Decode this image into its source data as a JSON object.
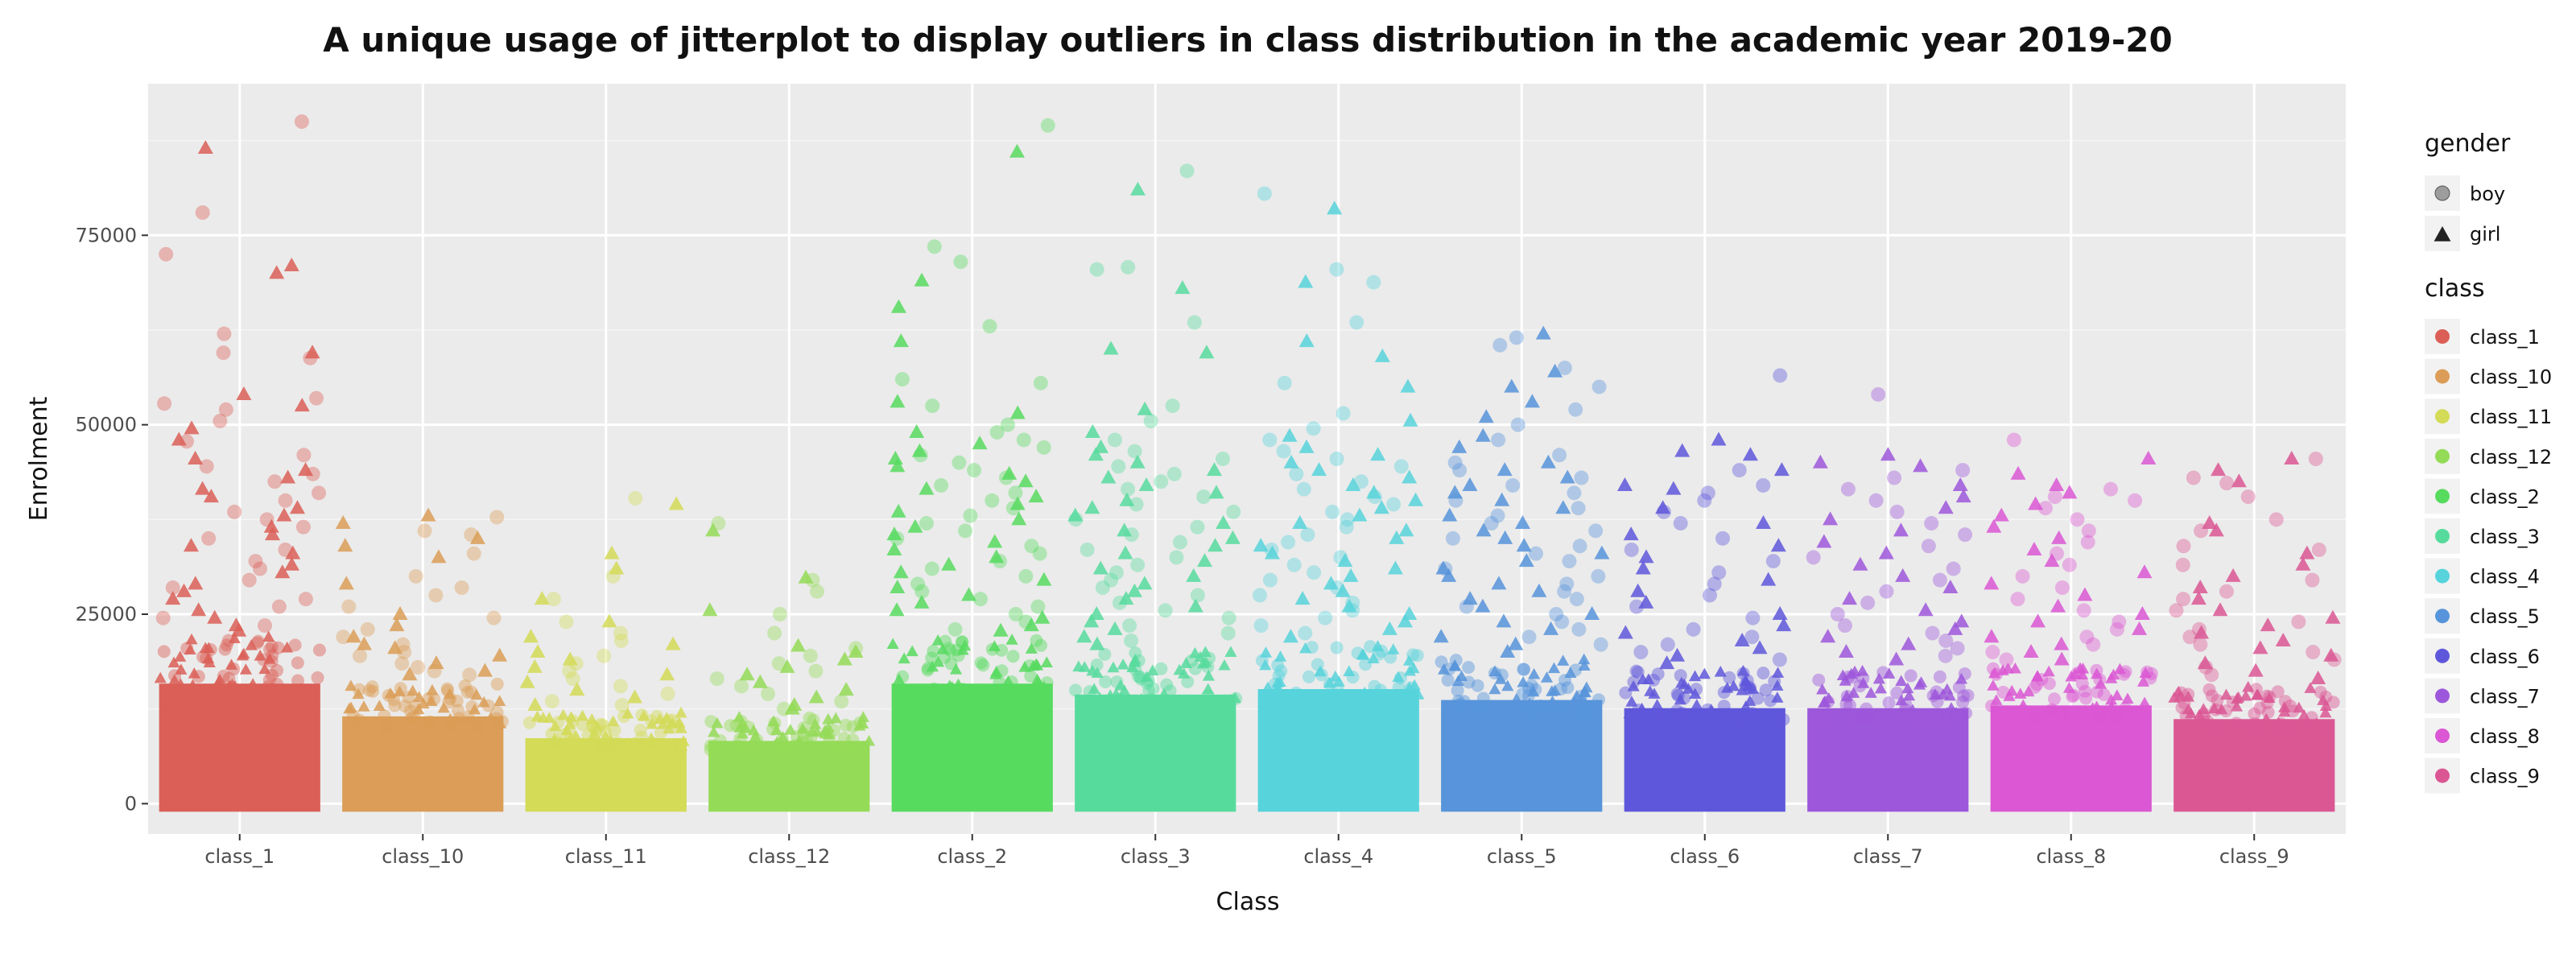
{
  "chart_data": {
    "type": "scatter",
    "subtype": "jitter",
    "title": "A unique usage of jitterplot to display outliers in class distribution in the academic year 2019-20",
    "xlabel": "Class",
    "ylabel": "Enrolment",
    "ylim": [
      -4000,
      95000
    ],
    "yticks": [
      0,
      25000,
      50000,
      75000
    ],
    "ytick_labels": [
      "0",
      "25000",
      "50000",
      "75000"
    ],
    "grid": true,
    "background": "#ebebeb",
    "legend_position": "right",
    "categories": [
      "class_1",
      "class_10",
      "class_11",
      "class_12",
      "class_2",
      "class_3",
      "class_4",
      "class_5",
      "class_6",
      "class_7",
      "class_8",
      "class_9"
    ],
    "class_legend_title": "class",
    "gender_legend_title": "gender",
    "gender_legend": [
      {
        "label": "boy",
        "shape": "circle"
      },
      {
        "label": "girl",
        "shape": "triangle"
      }
    ],
    "series": [
      {
        "name": "class_1",
        "color": "#DB5F57",
        "dense_max": 22000,
        "outliers": {
          "boy": [
            90000,
            78000,
            72500,
            62000,
            59500,
            58800,
            53500,
            52800,
            52000,
            50500,
            47800,
            46000,
            44500,
            43500,
            42500,
            41000,
            40000,
            38500,
            37500,
            36500,
            35000,
            33500,
            32000,
            31000,
            29500,
            28500,
            27000,
            26000,
            24500,
            23500
          ],
          "girl": [
            86500,
            71000,
            70000,
            59500,
            54000,
            52500,
            49500,
            48000,
            45500,
            44000,
            43000,
            41500,
            40500,
            39000,
            38000,
            36500,
            35500,
            34000,
            33000,
            31500,
            30500,
            29000,
            28000,
            27000,
            25500,
            24500,
            23500,
            22800
          ]
        }
      },
      {
        "name": "class_10",
        "color": "#DB9D57",
        "dense_max": 16000,
        "outliers": {
          "boy": [
            37800,
            36000,
            35500,
            33000,
            30000,
            28500,
            27500,
            26000,
            24500,
            23000,
            22000,
            21000,
            20000,
            19500,
            18500,
            18000,
            17500,
            17000
          ],
          "girl": [
            38000,
            37000,
            35000,
            34000,
            32500,
            29000,
            25000,
            23500,
            22000,
            21000,
            20500,
            19500,
            18500,
            17500,
            17000
          ]
        }
      },
      {
        "name": "class_11",
        "color": "#D3DB57",
        "dense_max": 12000,
        "outliers": {
          "boy": [
            40300,
            30000,
            27000,
            24000,
            22500,
            21500,
            19500,
            18500,
            17500,
            16500,
            15500,
            14500,
            13500,
            13000
          ],
          "girl": [
            39500,
            33000,
            31000,
            27000,
            24000,
            22000,
            21000,
            20000,
            19000,
            18000,
            17000,
            16000,
            15000,
            14000,
            13000
          ]
        }
      },
      {
        "name": "class_12",
        "color": "#94DB57",
        "dense_max": 11500,
        "outliers": {
          "boy": [
            37000,
            29500,
            28000,
            25000,
            22500,
            20500,
            19500,
            18500,
            17500,
            16500,
            15500,
            14500,
            13500,
            12500
          ],
          "girl": [
            36000,
            29800,
            25500,
            20800,
            20000,
            19000,
            18000,
            17000,
            16000,
            15000,
            14000,
            13000,
            12500
          ]
        }
      },
      {
        "name": "class_2",
        "color": "#57DB5F",
        "dense_max": 22000,
        "outliers": {
          "boy": [
            89500,
            73500,
            71500,
            63000,
            56000,
            55500,
            52500,
            50000,
            49000,
            48000,
            47000,
            46000,
            45000,
            44000,
            43000,
            42000,
            41000,
            40000,
            39000,
            38000,
            37000,
            36000,
            35000,
            34000,
            33000,
            32000,
            31000,
            30000,
            29000,
            28000,
            27000,
            26000,
            25000,
            24000,
            23000
          ],
          "girl": [
            86000,
            69000,
            65500,
            61000,
            53000,
            51500,
            49000,
            47500,
            46500,
            45500,
            44500,
            43500,
            42500,
            41500,
            40500,
            39500,
            38500,
            37500,
            36500,
            35500,
            34500,
            33500,
            32500,
            31500,
            30500,
            29500,
            28500,
            27500,
            26500,
            25500,
            24500,
            23500,
            22800
          ]
        }
      },
      {
        "name": "class_3",
        "color": "#57DB9D",
        "dense_max": 20000,
        "outliers": {
          "boy": [
            83500,
            70800,
            70500,
            63500,
            52500,
            50500,
            48000,
            46500,
            45500,
            44500,
            43500,
            42500,
            41500,
            40500,
            39500,
            38500,
            37500,
            36500,
            35500,
            34500,
            33500,
            32500,
            31500,
            30500,
            29500,
            28500,
            27500,
            26500,
            25500,
            24500,
            23500,
            22500,
            21500
          ],
          "girl": [
            81000,
            68000,
            60000,
            59500,
            52000,
            49000,
            47000,
            46000,
            45000,
            44000,
            43000,
            42000,
            41000,
            40000,
            39000,
            38000,
            37000,
            36000,
            35000,
            34000,
            33000,
            32000,
            31000,
            30000,
            29000,
            28000,
            27000,
            26000,
            25000,
            24000,
            23000,
            22000,
            21000
          ]
        }
      },
      {
        "name": "class_4",
        "color": "#57D3DB",
        "dense_max": 21000,
        "outliers": {
          "boy": [
            80500,
            70500,
            68800,
            63500,
            55500,
            51500,
            49500,
            48000,
            46500,
            45500,
            44500,
            43500,
            42500,
            41500,
            40500,
            39500,
            38500,
            37500,
            36500,
            35500,
            34500,
            33500,
            32500,
            31500,
            30500,
            29500,
            28500,
            27500,
            26500,
            25500,
            24500,
            23500,
            22500
          ],
          "girl": [
            78500,
            68800,
            61000,
            59000,
            55000,
            50500,
            48500,
            47000,
            46000,
            45000,
            44000,
            43000,
            42000,
            41000,
            40000,
            39000,
            38000,
            37000,
            36000,
            35000,
            34000,
            33000,
            32000,
            31000,
            30000,
            29000,
            28000,
            27000,
            26000,
            25000,
            24000,
            23000,
            22000
          ]
        }
      },
      {
        "name": "class_5",
        "color": "#5794DB",
        "dense_max": 19000,
        "outliers": {
          "boy": [
            61500,
            60500,
            57500,
            55000,
            52000,
            50000,
            48000,
            46000,
            45000,
            44000,
            43000,
            42000,
            41000,
            40000,
            39000,
            38000,
            37000,
            36000,
            35000,
            34000,
            33000,
            32000,
            31000,
            30000,
            29000,
            28000,
            27000,
            26000,
            25000,
            24000,
            23000,
            22000,
            21000
          ],
          "girl": [
            62000,
            57000,
            55000,
            53000,
            51000,
            48500,
            47000,
            45000,
            44000,
            43000,
            42000,
            41000,
            40000,
            39000,
            38000,
            37000,
            36000,
            35000,
            34000,
            33000,
            32000,
            31000,
            30000,
            29000,
            28000,
            27000,
            26000,
            25000,
            24000,
            23000,
            22000,
            21000,
            20000
          ]
        }
      },
      {
        "name": "class_6",
        "color": "#5F57DB",
        "dense_max": 17500,
        "outliers": {
          "boy": [
            56500,
            44000,
            42000,
            41000,
            40000,
            38500,
            37000,
            35000,
            33500,
            32000,
            30500,
            29000,
            27500,
            26000,
            24500,
            23000,
            22000,
            21000,
            20000,
            19000
          ],
          "girl": [
            48000,
            46500,
            46000,
            44000,
            42000,
            41500,
            39000,
            37000,
            35500,
            34000,
            32500,
            31000,
            29500,
            28000,
            26500,
            25000,
            23500,
            22500,
            21500,
            20500,
            19500,
            18500
          ]
        }
      },
      {
        "name": "class_7",
        "color": "#9D57DB",
        "dense_max": 17500,
        "outliers": {
          "boy": [
            54000,
            44000,
            43000,
            41500,
            40000,
            38500,
            37000,
            35500,
            34000,
            32500,
            31000,
            29500,
            28000,
            26500,
            25000,
            23500,
            22500,
            21500,
            20500,
            19500
          ],
          "girl": [
            46000,
            45000,
            44500,
            42000,
            40500,
            39000,
            37500,
            36000,
            34500,
            33000,
            31500,
            30000,
            28500,
            27000,
            25500,
            24000,
            23000,
            22000,
            21000,
            20000,
            19000
          ]
        }
      },
      {
        "name": "class_8",
        "color": "#DB57D3",
        "dense_max": 18000,
        "outliers": {
          "boy": [
            48000,
            41500,
            40500,
            40000,
            39000,
            37500,
            36000,
            34500,
            33000,
            31500,
            30000,
            28500,
            27000,
            25500,
            24000,
            23000,
            22000,
            21000,
            20000,
            19000
          ],
          "girl": [
            45500,
            43500,
            42000,
            41000,
            39500,
            38000,
            36500,
            35000,
            33500,
            32000,
            30500,
            29000,
            27500,
            26000,
            25000,
            24000,
            23000,
            22000,
            21000,
            20000,
            19000
          ]
        }
      },
      {
        "name": "class_9",
        "color": "#DB5794",
        "dense_max": 15500,
        "outliers": {
          "boy": [
            45500,
            43000,
            42300,
            40500,
            37500,
            36000,
            34000,
            33500,
            31500,
            29500,
            28000,
            27000,
            25500,
            24000,
            23000,
            22000,
            21000,
            20000,
            19000,
            18000,
            17000
          ],
          "girl": [
            45500,
            44000,
            42500,
            37000,
            36000,
            33000,
            31500,
            30000,
            28500,
            27000,
            25500,
            24500,
            23500,
            22500,
            21500,
            20500,
            19500,
            18500,
            17500,
            16500
          ]
        }
      }
    ]
  }
}
